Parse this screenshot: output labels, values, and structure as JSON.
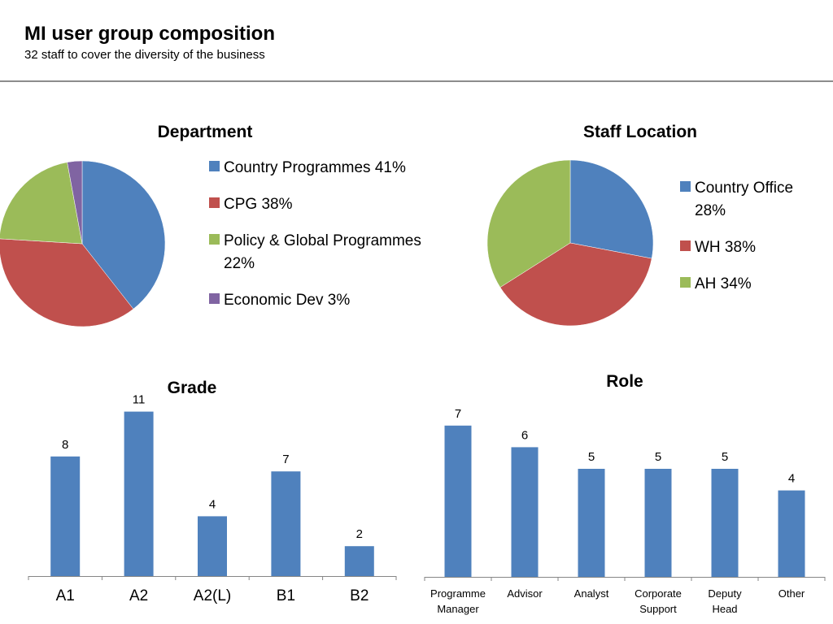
{
  "header": {
    "title": "MI user group composition",
    "subtitle": "32 staff to cover the diversity of the business"
  },
  "chart_data": [
    {
      "type": "pie",
      "title": "Department",
      "slices": [
        {
          "label": "Country Programmes 41%",
          "value": 41,
          "color": "#4f81bd"
        },
        {
          "label": "CPG 38%",
          "value": 38,
          "color": "#c0504d"
        },
        {
          "label": "Policy & Global Programmes 22%",
          "value": 22,
          "color": "#9bbb59"
        },
        {
          "label": "Economic Dev 3%",
          "value": 3,
          "color": "#8064a2"
        }
      ],
      "legend": "right"
    },
    {
      "type": "pie",
      "title": "Staff Location",
      "slices": [
        {
          "label": "Country Office 28%",
          "value": 28,
          "color": "#4f81bd"
        },
        {
          "label": "WH 38%",
          "value": 38,
          "color": "#c0504d"
        },
        {
          "label": "AH 34%",
          "value": 34,
          "color": "#9bbb59"
        }
      ],
      "legend": "right"
    },
    {
      "type": "bar",
      "title": "Grade",
      "categories": [
        "A1",
        "A2",
        "A2(L)",
        "B1",
        "B2"
      ],
      "values": [
        8,
        11,
        4,
        7,
        2
      ],
      "color": "#4f81bd",
      "ylim": [
        0,
        11
      ],
      "grid": false
    },
    {
      "type": "bar",
      "title": "Role",
      "categories": [
        "Programme Manager",
        "Advisor",
        "Analyst",
        "Corporate Support",
        "Deputy Head",
        "Other"
      ],
      "values": [
        7,
        6,
        5,
        5,
        5,
        4
      ],
      "color": "#4f81bd",
      "ylim": [
        0,
        7
      ],
      "grid": false
    }
  ]
}
